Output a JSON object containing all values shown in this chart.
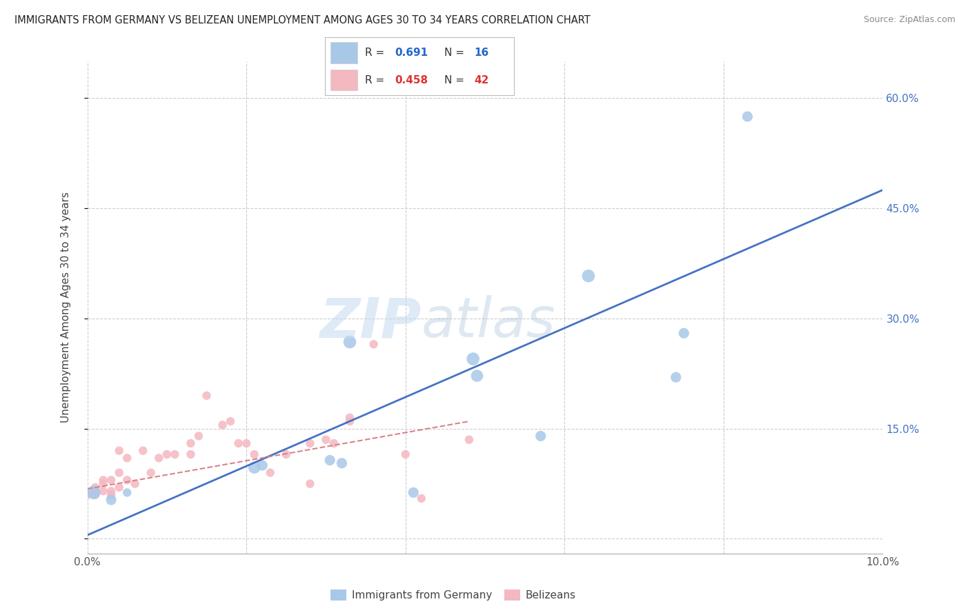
{
  "title": "IMMIGRANTS FROM GERMANY VS BELIZEAN UNEMPLOYMENT AMONG AGES 30 TO 34 YEARS CORRELATION CHART",
  "source": "Source: ZipAtlas.com",
  "ylabel": "Unemployment Among Ages 30 to 34 years",
  "xlim": [
    0.0,
    0.1
  ],
  "ylim": [
    -0.02,
    0.65
  ],
  "xticks": [
    0.0,
    0.02,
    0.04,
    0.06,
    0.08,
    0.1
  ],
  "xticklabels": [
    "0.0%",
    "",
    "",
    "",
    "",
    "10.0%"
  ],
  "yticks": [
    0.0,
    0.15,
    0.3,
    0.45,
    0.6
  ],
  "yticklabels_right": [
    "",
    "15.0%",
    "30.0%",
    "45.0%",
    "60.0%"
  ],
  "blue_color": "#a8c8e8",
  "pink_color": "#f4b8c0",
  "blue_line_color": "#4472c4",
  "pink_line_color": "#d9828a",
  "watermark_zip": "ZIP",
  "watermark_atlas": "atlas",
  "blue_scatter_x": [
    0.0008,
    0.003,
    0.005,
    0.021,
    0.022,
    0.0305,
    0.032,
    0.033,
    0.041,
    0.0485,
    0.049,
    0.057,
    0.063,
    0.074,
    0.075,
    0.083
  ],
  "blue_scatter_y": [
    0.063,
    0.053,
    0.063,
    0.097,
    0.1,
    0.107,
    0.103,
    0.268,
    0.063,
    0.245,
    0.222,
    0.14,
    0.358,
    0.22,
    0.28,
    0.575
  ],
  "blue_scatter_sizes": [
    200,
    120,
    80,
    160,
    120,
    120,
    120,
    180,
    120,
    180,
    160,
    120,
    180,
    120,
    120,
    120
  ],
  "pink_scatter_x": [
    0.0,
    0.001,
    0.001,
    0.001,
    0.002,
    0.002,
    0.002,
    0.003,
    0.003,
    0.003,
    0.004,
    0.004,
    0.004,
    0.005,
    0.005,
    0.006,
    0.007,
    0.008,
    0.009,
    0.01,
    0.011,
    0.013,
    0.013,
    0.014,
    0.015,
    0.017,
    0.018,
    0.019,
    0.02,
    0.021,
    0.023,
    0.025,
    0.028,
    0.028,
    0.03,
    0.031,
    0.033,
    0.033,
    0.036,
    0.04,
    0.042,
    0.048
  ],
  "pink_scatter_y": [
    0.06,
    0.06,
    0.07,
    0.065,
    0.08,
    0.075,
    0.065,
    0.06,
    0.065,
    0.08,
    0.07,
    0.09,
    0.12,
    0.08,
    0.11,
    0.075,
    0.12,
    0.09,
    0.11,
    0.115,
    0.115,
    0.13,
    0.115,
    0.14,
    0.195,
    0.155,
    0.16,
    0.13,
    0.13,
    0.115,
    0.09,
    0.115,
    0.13,
    0.075,
    0.135,
    0.13,
    0.165,
    0.16,
    0.265,
    0.115,
    0.055,
    0.135
  ],
  "pink_scatter_sizes": [
    80,
    80,
    80,
    80,
    80,
    80,
    80,
    80,
    80,
    80,
    80,
    80,
    80,
    80,
    80,
    80,
    80,
    80,
    80,
    80,
    80,
    80,
    80,
    80,
    80,
    80,
    80,
    80,
    80,
    80,
    80,
    80,
    80,
    80,
    80,
    80,
    80,
    80,
    80,
    80,
    80,
    80
  ],
  "blue_line_x": [
    0.0,
    0.1
  ],
  "blue_line_y": [
    0.005,
    0.475
  ],
  "pink_line_x": [
    0.0,
    0.048
  ],
  "pink_line_y": [
    0.068,
    0.16
  ]
}
